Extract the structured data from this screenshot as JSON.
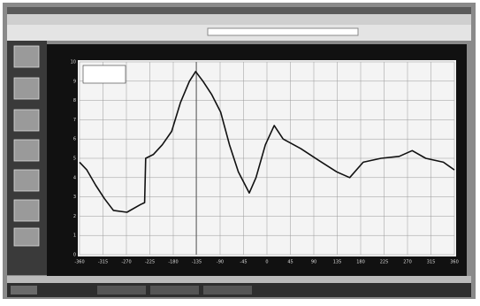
{
  "chart_data": {
    "type": "line",
    "x": [
      -360,
      -346,
      -329,
      -312,
      -295,
      -269,
      -243,
      -235,
      -233,
      -218,
      -201,
      -183,
      -166,
      -149,
      -137,
      -123,
      -106,
      -89,
      -72,
      -55,
      -34,
      -21,
      -3,
      14,
      31,
      65,
      99,
      134,
      159,
      185,
      219,
      254,
      279,
      305,
      339,
      360
    ],
    "series": [
      {
        "color": "#111111",
        "values": [
          4.8,
          4.4,
          3.6,
          2.9,
          2.3,
          2.2,
          2.6,
          2.7,
          5.0,
          5.2,
          5.7,
          6.4,
          7.9,
          9.0,
          9.5,
          9.0,
          8.3,
          7.4,
          5.7,
          4.3,
          3.2,
          4.0,
          5.7,
          6.7,
          6.0,
          5.5,
          4.9,
          4.3,
          4.0,
          4.8,
          5.0,
          5.1,
          5.4,
          5.0,
          4.8,
          4.4
        ]
      }
    ],
    "xlim": [
      -360,
      360
    ],
    "xticks": [
      -360,
      -315,
      -270,
      -225,
      -180,
      -135,
      -90,
      -45,
      0,
      45,
      90,
      135,
      180,
      225,
      270,
      315,
      360
    ],
    "ylim": [
      0,
      10
    ],
    "yticks": [
      0,
      1,
      2,
      3,
      4,
      5,
      6,
      7,
      8,
      9,
      10
    ],
    "grid": true
  }
}
